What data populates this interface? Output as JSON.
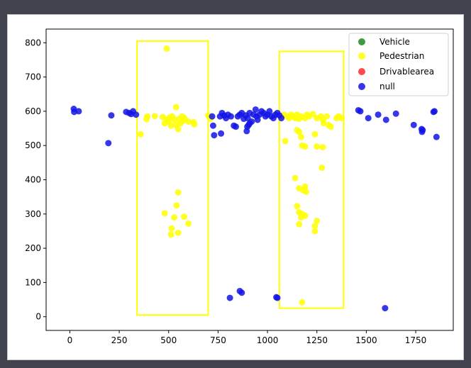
{
  "chart_data": {
    "type": "scatter",
    "title": "",
    "xlabel": "",
    "ylabel": "",
    "xlim": [
      -120,
      1940
    ],
    "ylim": [
      -40,
      840
    ],
    "xticks": [
      0,
      250,
      500,
      750,
      1000,
      1250,
      1500,
      1750
    ],
    "yticks": [
      0,
      100,
      200,
      300,
      400,
      500,
      600,
      700,
      800
    ],
    "grid": false,
    "legend_position": "top-right",
    "series": [
      {
        "name": "Vehicle",
        "color": "#1f8b1f",
        "points": []
      },
      {
        "name": "Pedestrian",
        "color": "#ffff00",
        "points": [
          [
            490,
            783
          ],
          [
            538,
            612
          ],
          [
            358,
            533
          ],
          [
            388,
            577
          ],
          [
            392,
            585
          ],
          [
            430,
            586
          ],
          [
            470,
            583
          ],
          [
            480,
            565
          ],
          [
            490,
            575
          ],
          [
            500,
            570
          ],
          [
            505,
            582
          ],
          [
            512,
            558
          ],
          [
            518,
            585
          ],
          [
            528,
            575
          ],
          [
            538,
            560
          ],
          [
            548,
            548
          ],
          [
            552,
            578
          ],
          [
            560,
            565
          ],
          [
            568,
            585
          ],
          [
            572,
            572
          ],
          [
            580,
            580
          ],
          [
            600,
            570
          ],
          [
            625,
            568
          ],
          [
            630,
            562
          ],
          [
            700,
            588
          ],
          [
            710,
            578
          ],
          [
            548,
            363
          ],
          [
            540,
            325
          ],
          [
            480,
            302
          ],
          [
            528,
            290
          ],
          [
            578,
            292
          ],
          [
            515,
            258
          ],
          [
            512,
            240
          ],
          [
            600,
            272
          ],
          [
            548,
            245
          ],
          [
            1070,
            585
          ],
          [
            1085,
            590
          ],
          [
            1100,
            585
          ],
          [
            1110,
            580
          ],
          [
            1120,
            590
          ],
          [
            1130,
            585
          ],
          [
            1140,
            580
          ],
          [
            1150,
            590
          ],
          [
            1160,
            578
          ],
          [
            1170,
            585
          ],
          [
            1190,
            580
          ],
          [
            1200,
            590
          ],
          [
            1210,
            585
          ],
          [
            1230,
            592
          ],
          [
            1250,
            580
          ],
          [
            1270,
            585
          ],
          [
            1280,
            575
          ],
          [
            1285,
            565
          ],
          [
            1300,
            585
          ],
          [
            1310,
            560
          ],
          [
            1320,
            555
          ],
          [
            1350,
            580
          ],
          [
            1360,
            585
          ],
          [
            1375,
            580
          ],
          [
            1150,
            545
          ],
          [
            1160,
            540
          ],
          [
            1170,
            525
          ],
          [
            1090,
            513
          ],
          [
            1240,
            533
          ],
          [
            1175,
            500
          ],
          [
            1190,
            497
          ],
          [
            1250,
            497
          ],
          [
            1280,
            495
          ],
          [
            1140,
            405
          ],
          [
            1160,
            375
          ],
          [
            1190,
            380
          ],
          [
            1180,
            370
          ],
          [
            1195,
            365
          ],
          [
            1150,
            323
          ],
          [
            1160,
            305
          ],
          [
            1175,
            300
          ],
          [
            1190,
            295
          ],
          [
            1170,
            290
          ],
          [
            1250,
            280
          ],
          [
            1240,
            265
          ],
          [
            1160,
            270
          ],
          [
            1275,
            435
          ],
          [
            1240,
            250
          ],
          [
            1175,
            42
          ]
        ]
      },
      {
        "name": "Drivablearea",
        "color": "#ff2b2b",
        "points": []
      },
      {
        "name": "null",
        "color": "#1414e6",
        "points": [
          [
            20,
            607
          ],
          [
            22,
            598
          ],
          [
            45,
            600
          ],
          [
            210,
            588
          ],
          [
            195,
            507
          ],
          [
            285,
            598
          ],
          [
            300,
            595
          ],
          [
            310,
            592
          ],
          [
            320,
            600
          ],
          [
            335,
            590
          ],
          [
            720,
            585
          ],
          [
            725,
            558
          ],
          [
            730,
            530
          ],
          [
            760,
            585
          ],
          [
            770,
            595
          ],
          [
            780,
            588
          ],
          [
            790,
            580
          ],
          [
            765,
            535
          ],
          [
            800,
            590
          ],
          [
            815,
            585
          ],
          [
            830,
            558
          ],
          [
            840,
            555
          ],
          [
            850,
            585
          ],
          [
            860,
            590
          ],
          [
            870,
            595
          ],
          [
            880,
            578
          ],
          [
            890,
            588
          ],
          [
            900,
            580
          ],
          [
            910,
            595
          ],
          [
            920,
            570
          ],
          [
            930,
            590
          ],
          [
            940,
            605
          ],
          [
            945,
            585
          ],
          [
            950,
            575
          ],
          [
            960,
            590
          ],
          [
            970,
            600
          ],
          [
            980,
            595
          ],
          [
            990,
            585
          ],
          [
            1000,
            590
          ],
          [
            1010,
            600
          ],
          [
            1020,
            585
          ],
          [
            1030,
            580
          ],
          [
            1040,
            590
          ],
          [
            1050,
            595
          ],
          [
            1060,
            588
          ],
          [
            1070,
            580
          ],
          [
            895,
            542
          ],
          [
            898,
            555
          ],
          [
            905,
            560
          ],
          [
            910,
            565
          ],
          [
            870,
            70
          ],
          [
            860,
            75
          ],
          [
            810,
            55
          ],
          [
            1045,
            57
          ],
          [
            1050,
            55
          ],
          [
            1460,
            603
          ],
          [
            1470,
            600
          ],
          [
            1510,
            580
          ],
          [
            1560,
            590
          ],
          [
            1600,
            575
          ],
          [
            1650,
            593
          ],
          [
            1740,
            560
          ],
          [
            1780,
            548
          ],
          [
            1782,
            540
          ],
          [
            1785,
            545
          ],
          [
            1840,
            598
          ],
          [
            1845,
            600
          ],
          [
            1855,
            525
          ],
          [
            1595,
            25
          ]
        ]
      }
    ],
    "annotations": [
      {
        "type": "rectangle",
        "color": "#ffff00",
        "x": [
          340,
          700
        ],
        "y": [
          5,
          805
        ]
      },
      {
        "type": "rectangle",
        "color": "#ffff00",
        "x": [
          1060,
          1385
        ],
        "y": [
          25,
          775
        ]
      }
    ]
  }
}
